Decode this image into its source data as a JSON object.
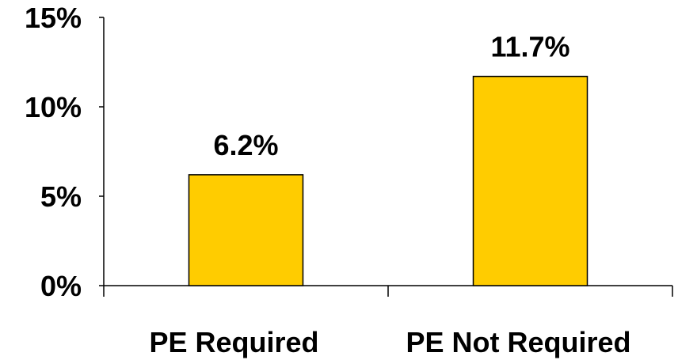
{
  "chart_data": {
    "type": "bar",
    "title": "",
    "xlabel": "",
    "ylabel": "",
    "categories": [
      "PE Required",
      "PE Not Required"
    ],
    "values": [
      6.2,
      11.7
    ],
    "data_labels": [
      "6.2%",
      "11.7%"
    ],
    "ylim": [
      0,
      15
    ],
    "yticks": [
      0,
      5,
      10,
      15
    ],
    "ytick_labels": [
      "0%",
      "5%",
      "10%",
      "15%"
    ],
    "grid": false,
    "legend": "none",
    "bar_color": "#FFCC00",
    "bar_edge_color": "#000000"
  }
}
